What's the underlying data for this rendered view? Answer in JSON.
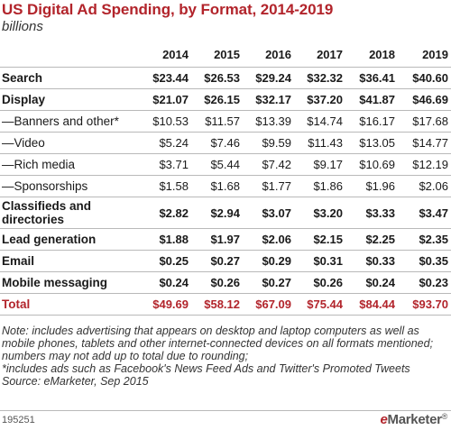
{
  "title": "US Digital Ad Spending, by Format, 2014-2019",
  "subtitle": "billions",
  "colors": {
    "accent": "#b2242b",
    "rule": "#b9b9b9"
  },
  "chart_data": {
    "type": "table",
    "title": "US Digital Ad Spending, by Format, 2014-2019",
    "subtitle": "billions",
    "columns": [
      "2014",
      "2015",
      "2016",
      "2017",
      "2018",
      "2019"
    ],
    "rows": [
      {
        "label": "Search",
        "style": "bold",
        "values": [
          "$23.44",
          "$26.53",
          "$29.24",
          "$32.32",
          "$36.41",
          "$40.60"
        ]
      },
      {
        "label": "Display",
        "style": "bold",
        "values": [
          "$21.07",
          "$26.15",
          "$32.17",
          "$37.20",
          "$41.87",
          "$46.69"
        ]
      },
      {
        "label": "—Banners and other*",
        "style": "sub",
        "values": [
          "$10.53",
          "$11.57",
          "$13.39",
          "$14.74",
          "$16.17",
          "$17.68"
        ]
      },
      {
        "label": "—Video",
        "style": "sub",
        "values": [
          "$5.24",
          "$7.46",
          "$9.59",
          "$11.43",
          "$13.05",
          "$14.77"
        ]
      },
      {
        "label": "—Rich media",
        "style": "sub",
        "values": [
          "$3.71",
          "$5.44",
          "$7.42",
          "$9.17",
          "$10.69",
          "$12.19"
        ]
      },
      {
        "label": "—Sponsorships",
        "style": "sub",
        "values": [
          "$1.58",
          "$1.68",
          "$1.77",
          "$1.86",
          "$1.96",
          "$2.06"
        ]
      },
      {
        "label": "Classifieds and directories",
        "style": "bold tall",
        "values": [
          "$2.82",
          "$2.94",
          "$3.07",
          "$3.20",
          "$3.33",
          "$3.47"
        ]
      },
      {
        "label": "Lead generation",
        "style": "bold",
        "values": [
          "$1.88",
          "$1.97",
          "$2.06",
          "$2.15",
          "$2.25",
          "$2.35"
        ]
      },
      {
        "label": "Email",
        "style": "bold",
        "values": [
          "$0.25",
          "$0.27",
          "$0.29",
          "$0.31",
          "$0.33",
          "$0.35"
        ]
      },
      {
        "label": "Mobile messaging",
        "style": "bold",
        "values": [
          "$0.24",
          "$0.26",
          "$0.27",
          "$0.26",
          "$0.24",
          "$0.23"
        ]
      },
      {
        "label": "Total",
        "style": "total",
        "values": [
          "$49.69",
          "$58.12",
          "$67.09",
          "$75.44",
          "$84.44",
          "$93.70"
        ]
      }
    ]
  },
  "notes": [
    "Note: includes advertising that appears on desktop and laptop computers as well as mobile phones, tablets and other internet-connected devices on all formats mentioned; numbers may not add up to total due to rounding;",
    "*includes ads such as Facebook's News Feed Ads and Twitter's Promoted Tweets",
    "Source: eMarketer, Sep 2015"
  ],
  "footer": {
    "chart_id": "195251",
    "brand_e": "e",
    "brand_rest": "Marketer",
    "brand_mark": "®"
  }
}
